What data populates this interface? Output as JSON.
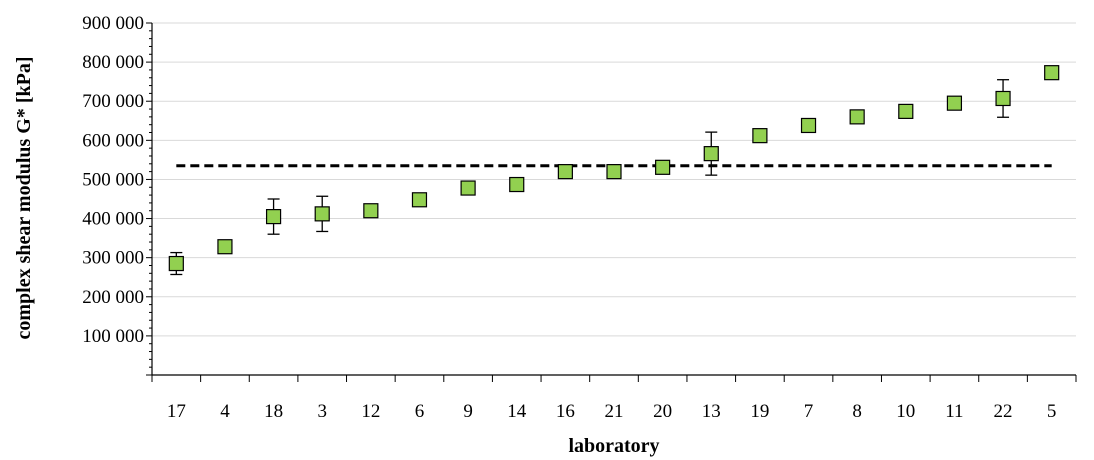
{
  "chart_data": {
    "type": "scatter",
    "title": "",
    "xlabel": "laboratory",
    "ylabel": "complex shear modulus G* [kPa]",
    "ylim": [
      0,
      900000
    ],
    "yticks": [
      "",
      "100 000",
      "200 000",
      "300 000",
      "400 000",
      "500 000",
      "600 000",
      "700 000",
      "800 000",
      "900 000"
    ],
    "grid": "horizontal",
    "categories": [
      "17",
      "4",
      "18",
      "3",
      "12",
      "6",
      "9",
      "14",
      "16",
      "21",
      "20",
      "13",
      "19",
      "7",
      "8",
      "10",
      "11",
      "22",
      "5"
    ],
    "values": [
      285000,
      328000,
      405000,
      412000,
      420000,
      448000,
      478000,
      487000,
      520000,
      520000,
      531000,
      566000,
      612000,
      638000,
      660000,
      674000,
      695000,
      707000,
      773000
    ],
    "error": [
      28000,
      0,
      45000,
      45000,
      0,
      0,
      0,
      0,
      0,
      0,
      0,
      55000,
      0,
      0,
      0,
      0,
      0,
      48000,
      0
    ],
    "reference_line": 535000,
    "marker_color": "#92d050",
    "marker_edge": "#000000"
  }
}
